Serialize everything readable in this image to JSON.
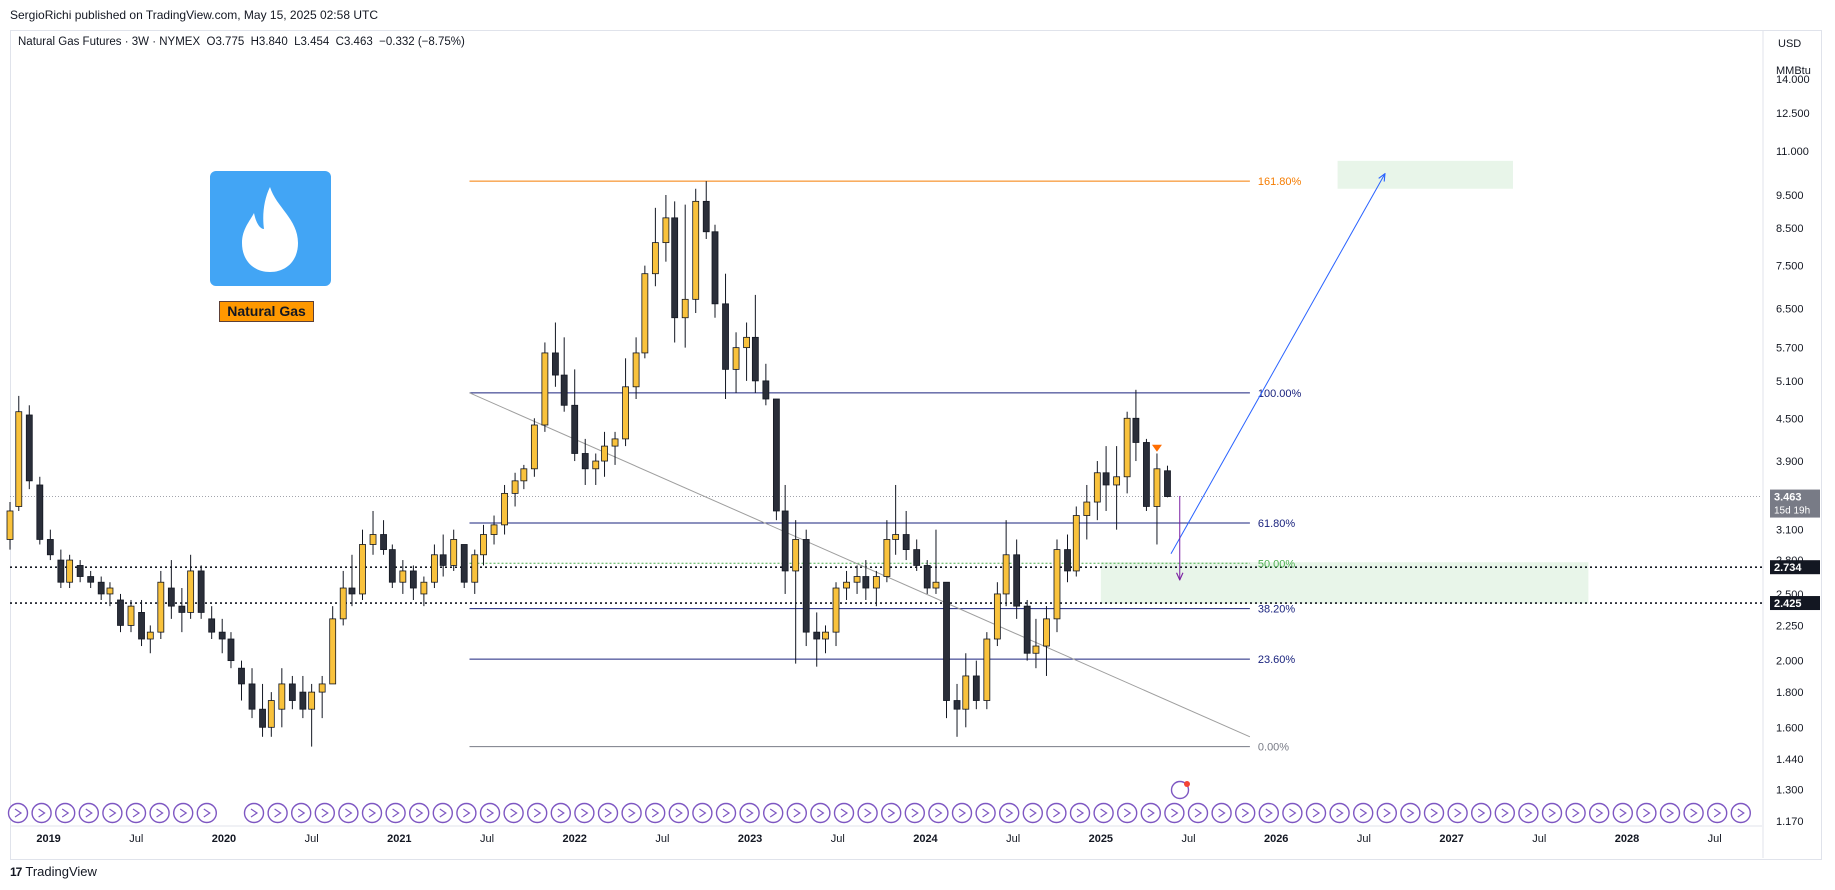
{
  "header": {
    "publisher": "SergioRichi published on TradingView.com, May 15, 2025 02:58 UTC",
    "symbol_line": "Natural Gas Futures · 3W · NYMEX  O3.775  H3.840  L3.454  C3.463  −0.332 (−8.75%)"
  },
  "logo": {
    "label": "Natural Gas",
    "icon": "flame-icon",
    "color": "#42a5f5",
    "label_color": "#ff9800"
  },
  "footer": {
    "brand": "TradingView",
    "mark": "17"
  },
  "chart_data": {
    "type": "candlestick",
    "instrument": "Natural Gas Futures",
    "interval": "3W",
    "exchange": "NYMEX",
    "ohlc_last": {
      "open": 3.775,
      "high": 3.84,
      "low": 3.454,
      "close": 3.463,
      "change": -0.332,
      "change_pct": -8.75
    },
    "scale": "log",
    "currency": "USD",
    "unit": "MMBtu",
    "ylim": [
      1.15,
      16.5
    ],
    "y_ticks": [
      1.17,
      1.3,
      1.44,
      1.6,
      1.8,
      2.0,
      2.25,
      2.5,
      2.8,
      3.1,
      3.5,
      3.9,
      4.5,
      5.1,
      5.7,
      6.5,
      7.5,
      8.5,
      9.5,
      11.0,
      12.5,
      14.0
    ],
    "y_tick_labels": [
      "1.170",
      "1.300",
      "1.440",
      "1.600",
      "1.800",
      "2.000",
      "2.250",
      "2.500",
      "2.800",
      "3.100",
      "3.500",
      "3.900",
      "4.500",
      "5.100",
      "5.700",
      "6.500",
      "7.500",
      "8.500",
      "9.500",
      "11.000",
      "12.500",
      "14.000"
    ],
    "x_labels": [
      {
        "t": 2019.0,
        "label": "2019"
      },
      {
        "t": 2019.5,
        "label": "Jul"
      },
      {
        "t": 2020.0,
        "label": "2020"
      },
      {
        "t": 2020.5,
        "label": "Jul"
      },
      {
        "t": 2021.0,
        "label": "2021"
      },
      {
        "t": 2021.5,
        "label": "Jul"
      },
      {
        "t": 2022.0,
        "label": "2022"
      },
      {
        "t": 2022.5,
        "label": "Jul"
      },
      {
        "t": 2023.0,
        "label": "2023"
      },
      {
        "t": 2023.5,
        "label": "Jul"
      },
      {
        "t": 2024.0,
        "label": "2024"
      },
      {
        "t": 2024.5,
        "label": "Jul"
      },
      {
        "t": 2025.0,
        "label": "2025"
      },
      {
        "t": 2025.5,
        "label": "Jul"
      },
      {
        "t": 2026.0,
        "label": "2026"
      },
      {
        "t": 2026.5,
        "label": "Jul"
      },
      {
        "t": 2027.0,
        "label": "2027"
      },
      {
        "t": 2027.5,
        "label": "Jul"
      },
      {
        "t": 2028.0,
        "label": "2028"
      },
      {
        "t": 2028.5,
        "label": "Jul"
      }
    ],
    "xlim": [
      2018.78,
      2028.77
    ],
    "price_labels": [
      {
        "value": 3.463,
        "label": "3.463",
        "sub": "15d 19h"
      },
      {
        "value": 2.734,
        "label": "2.734"
      },
      {
        "value": 2.425,
        "label": "2.425"
      }
    ],
    "fib_levels": [
      {
        "ratio": "161.80%",
        "value": 9.95,
        "color": "#f57c00"
      },
      {
        "ratio": "100.00%",
        "value": 4.9,
        "color": "#1a237e"
      },
      {
        "ratio": "61.80%",
        "value": 3.17,
        "color": "#1a237e"
      },
      {
        "ratio": "50.00%",
        "value": 2.77,
        "color": "#4caf50"
      },
      {
        "ratio": "38.20%",
        "value": 2.38,
        "color": "#1a237e"
      },
      {
        "ratio": "23.60%",
        "value": 2.01,
        "color": "#1a237e"
      },
      {
        "ratio": "0.00%",
        "value": 1.5,
        "color": "#787b86"
      }
    ],
    "fib_range": [
      2021.4,
      2025.85
    ],
    "zones": [
      {
        "t0": 2025.0,
        "t1": 2027.78,
        "low": 2.42,
        "high": 2.78,
        "color": "#e8f5e9"
      },
      {
        "t0": 2026.35,
        "t1": 2027.35,
        "low": 9.7,
        "high": 10.65,
        "color": "#e8f5e9"
      }
    ],
    "lines": [
      {
        "t0": 2021.4,
        "v0": 4.9,
        "t1": 2025.85,
        "v1": 1.55,
        "color": "#9e9e9e"
      },
      {
        "t0": 2025.4,
        "v0": 2.86,
        "t1": 2026.62,
        "v1": 10.2,
        "color": "#2962ff",
        "arrow": true
      },
      {
        "t0": 2025.45,
        "v0": 3.47,
        "t1": 2025.45,
        "v1": 2.62,
        "color": "#7b1fa2",
        "arrow": true
      }
    ],
    "candles": [
      [
        2018.78,
        3.0,
        3.4,
        2.9,
        3.3
      ],
      [
        2018.83,
        3.35,
        4.85,
        3.3,
        4.6
      ],
      [
        2018.89,
        4.55,
        4.7,
        3.55,
        3.65
      ],
      [
        2018.95,
        3.6,
        3.7,
        2.95,
        3.0
      ],
      [
        2019.01,
        3.0,
        3.1,
        2.8,
        2.85
      ],
      [
        2019.07,
        2.8,
        2.9,
        2.55,
        2.6
      ],
      [
        2019.12,
        2.6,
        2.85,
        2.55,
        2.8
      ],
      [
        2019.18,
        2.75,
        2.8,
        2.6,
        2.65
      ],
      [
        2019.24,
        2.65,
        2.7,
        2.55,
        2.6
      ],
      [
        2019.3,
        2.6,
        2.65,
        2.45,
        2.5
      ],
      [
        2019.35,
        2.5,
        2.6,
        2.4,
        2.55
      ],
      [
        2019.41,
        2.45,
        2.5,
        2.2,
        2.25
      ],
      [
        2019.47,
        2.25,
        2.45,
        2.2,
        2.4
      ],
      [
        2019.53,
        2.35,
        2.45,
        2.1,
        2.15
      ],
      [
        2019.58,
        2.15,
        2.25,
        2.05,
        2.2
      ],
      [
        2019.64,
        2.2,
        2.7,
        2.15,
        2.6
      ],
      [
        2019.7,
        2.55,
        2.8,
        2.3,
        2.4
      ],
      [
        2019.76,
        2.4,
        2.55,
        2.2,
        2.35
      ],
      [
        2019.81,
        2.35,
        2.85,
        2.3,
        2.7
      ],
      [
        2019.87,
        2.7,
        2.75,
        2.3,
        2.35
      ],
      [
        2019.93,
        2.3,
        2.4,
        2.15,
        2.2
      ],
      [
        2019.99,
        2.2,
        2.3,
        2.05,
        2.15
      ],
      [
        2020.04,
        2.15,
        2.2,
        1.95,
        2.0
      ],
      [
        2020.1,
        1.95,
        2.0,
        1.75,
        1.85
      ],
      [
        2020.16,
        1.85,
        1.95,
        1.65,
        1.7
      ],
      [
        2020.22,
        1.7,
        1.85,
        1.55,
        1.6
      ],
      [
        2020.27,
        1.6,
        1.8,
        1.55,
        1.75
      ],
      [
        2020.33,
        1.7,
        1.95,
        1.6,
        1.85
      ],
      [
        2020.39,
        1.85,
        1.9,
        1.7,
        1.75
      ],
      [
        2020.45,
        1.8,
        1.9,
        1.65,
        1.7
      ],
      [
        2020.5,
        1.7,
        1.85,
        1.5,
        1.8
      ],
      [
        2020.56,
        1.8,
        1.9,
        1.65,
        1.85
      ],
      [
        2020.62,
        1.85,
        2.4,
        1.85,
        2.3
      ],
      [
        2020.68,
        2.3,
        2.7,
        2.25,
        2.55
      ],
      [
        2020.73,
        2.55,
        2.85,
        2.4,
        2.5
      ],
      [
        2020.79,
        2.5,
        3.1,
        2.45,
        2.95
      ],
      [
        2020.85,
        2.95,
        3.3,
        2.85,
        3.05
      ],
      [
        2020.91,
        3.05,
        3.2,
        2.85,
        2.9
      ],
      [
        2020.96,
        2.9,
        2.95,
        2.55,
        2.6
      ],
      [
        2021.02,
        2.6,
        2.8,
        2.5,
        2.7
      ],
      [
        2021.08,
        2.7,
        2.75,
        2.45,
        2.55
      ],
      [
        2021.14,
        2.5,
        2.65,
        2.4,
        2.6
      ],
      [
        2021.2,
        2.6,
        2.95,
        2.55,
        2.85
      ],
      [
        2021.25,
        2.85,
        3.05,
        2.65,
        2.75
      ],
      [
        2021.31,
        2.75,
        3.1,
        2.7,
        3.0
      ],
      [
        2021.37,
        2.95,
        2.95,
        2.55,
        2.6
      ],
      [
        2021.43,
        2.6,
        2.9,
        2.5,
        2.85
      ],
      [
        2021.48,
        2.85,
        3.15,
        2.75,
        3.05
      ],
      [
        2021.54,
        3.05,
        3.25,
        2.95,
        3.15
      ],
      [
        2021.6,
        3.15,
        3.6,
        3.05,
        3.5
      ],
      [
        2021.66,
        3.5,
        3.75,
        3.35,
        3.65
      ],
      [
        2021.71,
        3.65,
        3.85,
        3.55,
        3.8
      ],
      [
        2021.77,
        3.8,
        4.5,
        3.7,
        4.4
      ],
      [
        2021.83,
        4.4,
        5.8,
        4.3,
        5.6
      ],
      [
        2021.89,
        5.6,
        6.2,
        5.0,
        5.2
      ],
      [
        2021.94,
        5.2,
        5.9,
        4.6,
        4.7
      ],
      [
        2022.0,
        4.7,
        5.3,
        3.9,
        4.0
      ],
      [
        2022.06,
        4.0,
        4.2,
        3.6,
        3.8
      ],
      [
        2022.12,
        3.8,
        4.0,
        3.6,
        3.9
      ],
      [
        2022.17,
        3.9,
        4.3,
        3.7,
        4.1
      ],
      [
        2022.23,
        4.1,
        4.3,
        3.85,
        4.2
      ],
      [
        2022.29,
        4.2,
        5.5,
        4.1,
        5.0
      ],
      [
        2022.35,
        5.0,
        5.9,
        4.8,
        5.6
      ],
      [
        2022.4,
        5.6,
        7.5,
        5.5,
        7.3
      ],
      [
        2022.46,
        7.3,
        9.1,
        7.0,
        8.1
      ],
      [
        2022.52,
        8.1,
        9.5,
        7.6,
        8.8
      ],
      [
        2022.57,
        8.8,
        9.3,
        5.8,
        6.3
      ],
      [
        2022.63,
        6.3,
        9.2,
        5.7,
        6.7
      ],
      [
        2022.69,
        6.7,
        9.7,
        6.4,
        9.3
      ],
      [
        2022.75,
        9.3,
        9.95,
        8.2,
        8.4
      ],
      [
        2022.8,
        8.4,
        8.6,
        6.3,
        6.6
      ],
      [
        2022.86,
        6.6,
        7.3,
        4.8,
        5.3
      ],
      [
        2022.92,
        5.3,
        6.0,
        4.9,
        5.7
      ],
      [
        2022.98,
        5.7,
        6.2,
        5.1,
        5.9
      ],
      [
        2023.03,
        5.9,
        6.8,
        4.9,
        5.1
      ],
      [
        2023.09,
        5.1,
        5.4,
        4.7,
        4.8
      ],
      [
        2023.15,
        4.8,
        4.8,
        3.2,
        3.3
      ],
      [
        2023.2,
        3.3,
        3.6,
        2.5,
        2.7
      ],
      [
        2023.26,
        2.7,
        3.2,
        1.98,
        3.0
      ],
      [
        2023.32,
        3.0,
        3.1,
        2.1,
        2.2
      ],
      [
        2023.38,
        2.2,
        2.35,
        1.96,
        2.15
      ],
      [
        2023.43,
        2.15,
        2.25,
        2.05,
        2.2
      ],
      [
        2023.49,
        2.2,
        2.6,
        2.1,
        2.55
      ],
      [
        2023.55,
        2.55,
        2.7,
        2.45,
        2.6
      ],
      [
        2023.61,
        2.6,
        2.75,
        2.5,
        2.65
      ],
      [
        2023.66,
        2.65,
        2.8,
        2.45,
        2.55
      ],
      [
        2023.72,
        2.55,
        2.7,
        2.4,
        2.65
      ],
      [
        2023.78,
        2.65,
        3.2,
        2.6,
        3.0
      ],
      [
        2023.83,
        3.0,
        3.6,
        2.85,
        3.05
      ],
      [
        2023.89,
        3.05,
        3.3,
        2.8,
        2.9
      ],
      [
        2023.95,
        2.9,
        3.0,
        2.7,
        2.75
      ],
      [
        2024.01,
        2.75,
        2.8,
        2.5,
        2.55
      ],
      [
        2024.06,
        2.55,
        3.1,
        2.5,
        2.6
      ],
      [
        2024.12,
        2.6,
        2.6,
        1.65,
        1.75
      ],
      [
        2024.18,
        1.75,
        1.85,
        1.55,
        1.7
      ],
      [
        2024.23,
        1.7,
        2.05,
        1.6,
        1.9
      ],
      [
        2024.29,
        1.9,
        2.0,
        1.7,
        1.75
      ],
      [
        2024.35,
        1.75,
        2.2,
        1.7,
        2.15
      ],
      [
        2024.41,
        2.15,
        2.6,
        2.1,
        2.5
      ],
      [
        2024.46,
        2.5,
        3.2,
        2.4,
        2.85
      ],
      [
        2024.52,
        2.85,
        3.0,
        2.3,
        2.4
      ],
      [
        2024.58,
        2.4,
        2.45,
        2.0,
        2.05
      ],
      [
        2024.63,
        2.05,
        2.3,
        1.95,
        2.1
      ],
      [
        2024.69,
        2.1,
        2.4,
        1.9,
        2.3
      ],
      [
        2024.75,
        2.3,
        3.0,
        2.2,
        2.9
      ],
      [
        2024.81,
        2.9,
        3.05,
        2.6,
        2.7
      ],
      [
        2024.86,
        2.7,
        3.35,
        2.65,
        3.25
      ],
      [
        2024.92,
        3.25,
        3.6,
        3.0,
        3.4
      ],
      [
        2024.98,
        3.4,
        3.9,
        3.2,
        3.75
      ],
      [
        2025.03,
        3.75,
        4.1,
        3.3,
        3.6
      ],
      [
        2025.09,
        3.6,
        4.1,
        3.1,
        3.7
      ],
      [
        2025.15,
        3.7,
        4.6,
        3.5,
        4.5
      ],
      [
        2025.2,
        4.5,
        4.95,
        3.9,
        4.15
      ],
      [
        2025.26,
        4.15,
        4.2,
        3.3,
        3.35
      ],
      [
        2025.32,
        3.35,
        4.0,
        2.95,
        3.8
      ],
      [
        2025.38,
        3.775,
        3.84,
        3.454,
        3.463
      ]
    ]
  }
}
